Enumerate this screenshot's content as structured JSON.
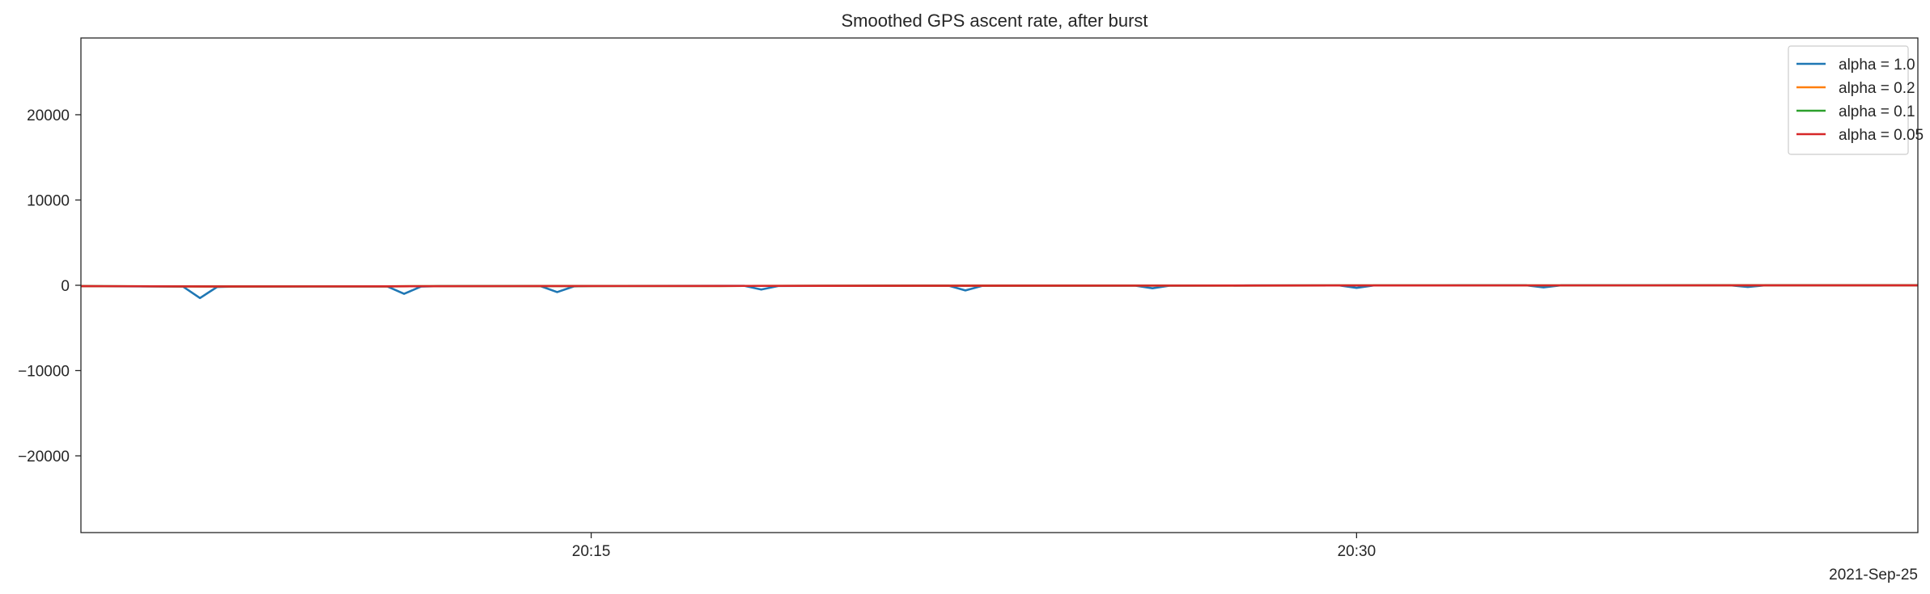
{
  "chart_data": {
    "type": "line",
    "title": "Smoothed GPS ascent rate, after burst",
    "xlabel": "",
    "ylabel": "",
    "x_range": [
      "20:05",
      "20:41"
    ],
    "x_ticks": [
      "20:15",
      "20:30"
    ],
    "x_date_label": "2021-Sep-25",
    "ylim": [
      -29000,
      29000
    ],
    "y_ticks": [
      20000,
      10000,
      0,
      -10000,
      -20000
    ],
    "y_tick_labels": [
      "20000",
      "10000",
      "0",
      "−10000",
      "−20000"
    ],
    "grid": false,
    "legend_position": "top-right",
    "series": [
      {
        "name": "alpha = 1.0",
        "color": "#1f77b4",
        "x": [
          "20:05",
          "20:07",
          "20:07:20",
          "20:07:40",
          "20:08",
          "20:11",
          "20:11:20",
          "20:11:40",
          "20:12",
          "20:14",
          "20:14:20",
          "20:14:40",
          "20:15",
          "20:18",
          "20:18:20",
          "20:18:40",
          "20:20",
          "20:22",
          "20:22:20",
          "20:22:40",
          "20:24",
          "20:25:40",
          "20:26",
          "20:26:20",
          "20:28",
          "20:29:40",
          "20:30",
          "20:30:20",
          "20:32",
          "20:33:20",
          "20:33:40",
          "20:34",
          "20:36",
          "20:37:20",
          "20:37:40",
          "20:38",
          "20:41"
        ],
        "values": [
          -100,
          -150,
          -1500,
          -200,
          -150,
          -120,
          -1000,
          -150,
          -100,
          -80,
          -800,
          -120,
          -80,
          -60,
          -500,
          -80,
          -60,
          -40,
          -600,
          -60,
          -40,
          -40,
          -350,
          -40,
          -20,
          -20,
          -300,
          -20,
          -10,
          -10,
          -250,
          -10,
          -10,
          -10,
          -200,
          -10,
          -10
        ]
      },
      {
        "name": "alpha = 0.2",
        "color": "#ff7f0e",
        "x": [
          "20:05",
          "20:08",
          "20:11",
          "20:14",
          "20:18",
          "20:22",
          "20:26",
          "20:30",
          "20:34",
          "20:38",
          "20:41"
        ],
        "values": [
          -100,
          -140,
          -120,
          -90,
          -70,
          -50,
          -35,
          -20,
          -12,
          -10,
          -10
        ]
      },
      {
        "name": "alpha = 0.1",
        "color": "#2ca02c",
        "x": [
          "20:05",
          "20:08",
          "20:11",
          "20:14",
          "20:18",
          "20:22",
          "20:26",
          "20:30",
          "20:34",
          "20:38",
          "20:41"
        ],
        "values": [
          -100,
          -140,
          -120,
          -90,
          -70,
          -50,
          -35,
          -20,
          -12,
          -10,
          -10
        ]
      },
      {
        "name": "alpha = 0.05",
        "color": "#d62728",
        "x": [
          "20:05",
          "20:08",
          "20:11",
          "20:14",
          "20:18",
          "20:22",
          "20:26",
          "20:30",
          "20:34",
          "20:38",
          "20:41"
        ],
        "values": [
          -100,
          -140,
          -120,
          -90,
          -70,
          -50,
          -35,
          -20,
          -12,
          -10,
          -10
        ]
      }
    ]
  }
}
